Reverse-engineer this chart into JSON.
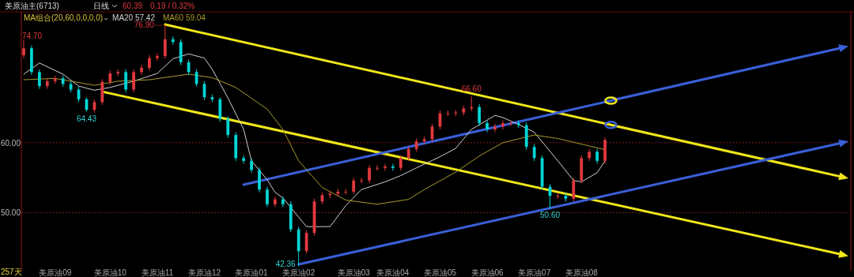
{
  "chart_data": {
    "type": "candlestick",
    "title": "美原油主(6713)",
    "subtitle": "日线",
    "legend_title": "MA组合(20,60,0,0,0,0)",
    "legend": "top left",
    "grid": "y",
    "annotations": [
      "60.39",
      "0.19 / 0.32%",
      "257天",
      "74.70",
      "76.90",
      "42.36",
      {
        "text": "64.43",
        "y": 64.43
      },
      {
        "text": "66.60",
        "y": 66.6
      },
      {
        "text": "50.60",
        "y": 50.6
      }
    ],
    "ylim": [
      41.7,
      78.6
    ],
    "yticks": [
      {
        "value": 50,
        "label": "50.00"
      },
      {
        "value": 60,
        "label": "60.00"
      }
    ],
    "categories": [
      null,
      null,
      null,
      null,
      "美原油09",
      null,
      null,
      null,
      null,
      null,
      null,
      "美原油10",
      null,
      null,
      null,
      null,
      null,
      "美原油11",
      null,
      null,
      null,
      null,
      null,
      "美原油12",
      null,
      null,
      null,
      null,
      null,
      "美原油01",
      null,
      null,
      null,
      null,
      null,
      "美原油02",
      null,
      null,
      null,
      null,
      null,
      null,
      "美原油03",
      null,
      null,
      null,
      null,
      "美原油04",
      null,
      null,
      null,
      null,
      null,
      "美原油05",
      null,
      null,
      null,
      null,
      null,
      "美原油06",
      null,
      null,
      null,
      null,
      null,
      "美原油07",
      null,
      null,
      null,
      null,
      null,
      "美原油08",
      null,
      null,
      null,
      null,
      null,
      null,
      null,
      null,
      null,
      null,
      null,
      null,
      null,
      null,
      null,
      null,
      null,
      null,
      null,
      null,
      null,
      null,
      null,
      null,
      null,
      null,
      null,
      null,
      null,
      null,
      null,
      null,
      null,
      null
    ],
    "ohlc": [
      [
        72.5,
        74.7,
        72.1,
        73.5
      ],
      [
        73.5,
        73.9,
        69.7,
        70.1
      ],
      [
        70.1,
        70.5,
        67.7,
        68.1
      ],
      [
        68.1,
        69.2,
        67.7,
        68.8
      ],
      [
        68.8,
        69.6,
        68.4,
        69.2
      ],
      [
        69.2,
        69.6,
        68.0,
        68.4
      ],
      [
        68.4,
        68.8,
        67.2,
        67.6
      ],
      [
        67.6,
        68.0,
        65.8,
        66.2
      ],
      [
        66.2,
        66.5,
        64.43,
        64.7
      ],
      [
        64.7,
        66.2,
        64.3,
        65.8
      ],
      [
        65.8,
        69.1,
        65.4,
        68.7
      ],
      [
        68.7,
        70.3,
        68.3,
        69.9
      ],
      [
        69.9,
        70.5,
        69.5,
        70.1
      ],
      [
        70.1,
        70.5,
        67.2,
        67.6
      ],
      [
        67.6,
        70.5,
        67.2,
        70.1
      ],
      [
        70.1,
        71.1,
        69.7,
        70.7
      ],
      [
        70.7,
        72.5,
        70.3,
        72.1
      ],
      [
        72.1,
        72.8,
        71.7,
        72.4
      ],
      [
        72.4,
        76.9,
        72.0,
        74.8
      ],
      [
        74.8,
        75.2,
        74.0,
        74.4
      ],
      [
        74.4,
        74.8,
        71.1,
        71.5
      ],
      [
        71.5,
        71.9,
        69.7,
        70.1
      ],
      [
        70.1,
        70.5,
        68.0,
        68.4
      ],
      [
        68.4,
        68.8,
        66.1,
        66.5
      ],
      [
        66.5,
        66.9,
        65.8,
        66.2
      ],
      [
        66.2,
        66.5,
        63.0,
        63.4
      ],
      [
        63.4,
        63.8,
        60.7,
        61.1
      ],
      [
        61.1,
        61.5,
        57.4,
        57.8
      ],
      [
        57.8,
        58.2,
        57.0,
        57.4
      ],
      [
        57.4,
        57.8,
        55.7,
        56.1
      ],
      [
        56.1,
        56.5,
        52.9,
        53.3
      ],
      [
        53.3,
        53.7,
        50.8,
        51.2
      ],
      [
        51.2,
        52.3,
        50.8,
        51.9
      ],
      [
        51.9,
        52.3,
        50.8,
        51.2
      ],
      [
        51.2,
        51.6,
        47.2,
        47.6
      ],
      [
        47.6,
        48.0,
        42.36,
        44.5
      ],
      [
        44.5,
        47.5,
        44.1,
        47.1
      ],
      [
        47.1,
        52.0,
        46.7,
        51.6
      ],
      [
        51.6,
        52.9,
        51.2,
        52.5
      ],
      [
        52.5,
        53.1,
        52.1,
        52.7
      ],
      [
        52.7,
        53.4,
        52.3,
        53.0
      ],
      [
        53.0,
        53.4,
        52.6,
        53.0
      ],
      [
        53.0,
        55.0,
        52.6,
        54.6
      ],
      [
        54.6,
        55.0,
        54.2,
        54.6
      ],
      [
        54.6,
        56.8,
        54.2,
        56.4
      ],
      [
        56.4,
        56.8,
        56.0,
        56.4
      ],
      [
        56.4,
        57.0,
        56.0,
        56.6
      ],
      [
        56.6,
        57.0,
        56.0,
        56.4
      ],
      [
        56.4,
        58.2,
        56.0,
        57.8
      ],
      [
        57.8,
        59.5,
        57.4,
        59.1
      ],
      [
        59.1,
        60.6,
        58.7,
        60.2
      ],
      [
        60.2,
        60.9,
        59.8,
        60.5
      ],
      [
        60.5,
        62.7,
        60.1,
        62.3
      ],
      [
        62.3,
        64.6,
        61.9,
        64.2
      ],
      [
        64.2,
        64.6,
        63.8,
        64.2
      ],
      [
        64.2,
        64.7,
        63.8,
        64.3
      ],
      [
        64.3,
        65.3,
        63.9,
        64.9
      ],
      [
        64.9,
        66.6,
        64.5,
        65.1
      ],
      [
        65.1,
        65.5,
        62.4,
        62.8
      ],
      [
        62.8,
        63.2,
        61.5,
        61.9
      ],
      [
        61.9,
        62.7,
        61.5,
        62.3
      ],
      [
        62.3,
        63.2,
        61.9,
        62.8
      ],
      [
        62.8,
        63.2,
        62.4,
        62.8
      ],
      [
        62.8,
        63.2,
        62.1,
        62.5
      ],
      [
        62.5,
        62.9,
        59.0,
        59.4
      ],
      [
        59.4,
        59.8,
        57.4,
        57.8
      ],
      [
        57.8,
        58.2,
        53.3,
        53.7
      ],
      [
        53.7,
        54.1,
        50.6,
        52.4
      ],
      [
        52.4,
        52.8,
        52.0,
        52.4
      ],
      [
        52.4,
        52.8,
        51.6,
        52.0
      ],
      [
        52.0,
        55.0,
        51.6,
        54.6
      ],
      [
        54.6,
        58.2,
        54.2,
        57.8
      ],
      [
        57.8,
        59.1,
        57.4,
        58.7
      ],
      [
        58.7,
        59.1,
        57.0,
        57.4
      ],
      [
        57.4,
        60.8,
        57.0,
        60.39
      ],
      null,
      null,
      null,
      null,
      null,
      null,
      null,
      null,
      null,
      null,
      null,
      null,
      null,
      null,
      null,
      null,
      null,
      null,
      null,
      null,
      null,
      null,
      null,
      null,
      null,
      null,
      null,
      null,
      null,
      null,
      null
    ],
    "colors": [
      "#e0393e",
      "#00d5d5",
      "#00d5d5",
      "#e0393e",
      "#e0393e",
      "#00d5d5",
      "#00d5d5",
      "#00d5d5",
      "#00d5d5",
      "#e0393e",
      "#e0393e",
      "#e0393e",
      "#e0393e",
      "#00d5d5",
      "#e0393e",
      "#e0393e",
      "#e0393e",
      "#e0393e",
      "#e0393e",
      "#00d5d5",
      "#00d5d5",
      "#00d5d5",
      "#00d5d5",
      "#00d5d5",
      "#00d5d5",
      "#00d5d5",
      "#00d5d5",
      "#00d5d5",
      "#00d5d5",
      "#00d5d5",
      "#00d5d5",
      "#00d5d5",
      "#e0393e",
      "#00d5d5",
      "#00d5d5",
      "#00d5d5",
      "#e0393e",
      "#e0393e",
      "#e0393e",
      "#e0393e",
      "#e0393e",
      "#e0393e",
      "#e0393e",
      "#e0393e",
      "#e0393e",
      "#e0393e",
      "#e0393e",
      "#00d5d5",
      "#e0393e",
      "#e0393e",
      "#e0393e",
      "#e0393e",
      "#e0393e",
      "#e0393e",
      "#e0393e",
      "#e0393e",
      "#e0393e",
      "#e0393e",
      "#00d5d5",
      "#00d5d5",
      "#e0393e",
      "#e0393e",
      "#e0393e",
      "#00d5d5",
      "#00d5d5",
      "#00d5d5",
      "#00d5d5",
      "#00d5d5",
      "#e0393e",
      "#00d5d5",
      "#e0393e",
      "#e0393e",
      "#e0393e",
      "#00d5d5",
      "#e0393e",
      null,
      null,
      null,
      null,
      null,
      null,
      null,
      null,
      null,
      null,
      null,
      null,
      null,
      null,
      null,
      null,
      null,
      null,
      null,
      null,
      null,
      null,
      null,
      null,
      null,
      null,
      null,
      null,
      null,
      null,
      null
    ],
    "series": [
      {
        "name": "MA20 57.42",
        "type": "line",
        "color": "#d0d0d0",
        "values": [
          69.8,
          null,
          71.4,
          null,
          null,
          69.8,
          null,
          68.1,
          null,
          67.5,
          null,
          67.9,
          null,
          null,
          68.8,
          null,
          null,
          69.9,
          null,
          72.0,
          null,
          72.7,
          null,
          72.1,
          70.5,
          null,
          66.4,
          null,
          61.9,
          57.4,
          null,
          54.7,
          52.9,
          52.1,
          null,
          null,
          48.0,
          null,
          null,
          48.0,
          null,
          51.0,
          null,
          53.3,
          null,
          null,
          54.4,
          null,
          55.3,
          null,
          56.4,
          null,
          null,
          58.0,
          null,
          59.2,
          null,
          61.9,
          null,
          null,
          63.9,
          63.6,
          null,
          62.6,
          null,
          61.5,
          null,
          null,
          57.4,
          null,
          54.6,
          54.4,
          null,
          55.7,
          57.4,
          null,
          null,
          null,
          null,
          null,
          null,
          null,
          null,
          null,
          null,
          null,
          null,
          null,
          null,
          null,
          null,
          null,
          null,
          null,
          null,
          null,
          null,
          null,
          null,
          null,
          null,
          null,
          null,
          null,
          null,
          null
        ]
      },
      {
        "name": "MA60 59.04",
        "type": "line",
        "color": "#a89a2c",
        "values": [
          69.0,
          null,
          null,
          null,
          69.2,
          null,
          null,
          null,
          null,
          68.2,
          null,
          null,
          68.8,
          null,
          null,
          null,
          69.0,
          null,
          null,
          null,
          null,
          69.8,
          null,
          null,
          69.3,
          null,
          null,
          67.9,
          null,
          null,
          null,
          64.8,
          null,
          61.9,
          null,
          57.4,
          null,
          null,
          53.6,
          null,
          null,
          51.8,
          null,
          null,
          null,
          51.2,
          null,
          null,
          null,
          51.9,
          null,
          53.3,
          null,
          null,
          null,
          55.8,
          null,
          null,
          58.1,
          null,
          null,
          60.0,
          null,
          null,
          null,
          61.1,
          null,
          null,
          60.6,
          null,
          null,
          59.8,
          null,
          null,
          59.0,
          null,
          null,
          null,
          null,
          null,
          null,
          null,
          null,
          null,
          null,
          null,
          null,
          null,
          null,
          null,
          null,
          null,
          null,
          null,
          null,
          null,
          null,
          null,
          null,
          null,
          null,
          null,
          null,
          null,
          null,
          null
        ]
      }
    ]
  }
}
